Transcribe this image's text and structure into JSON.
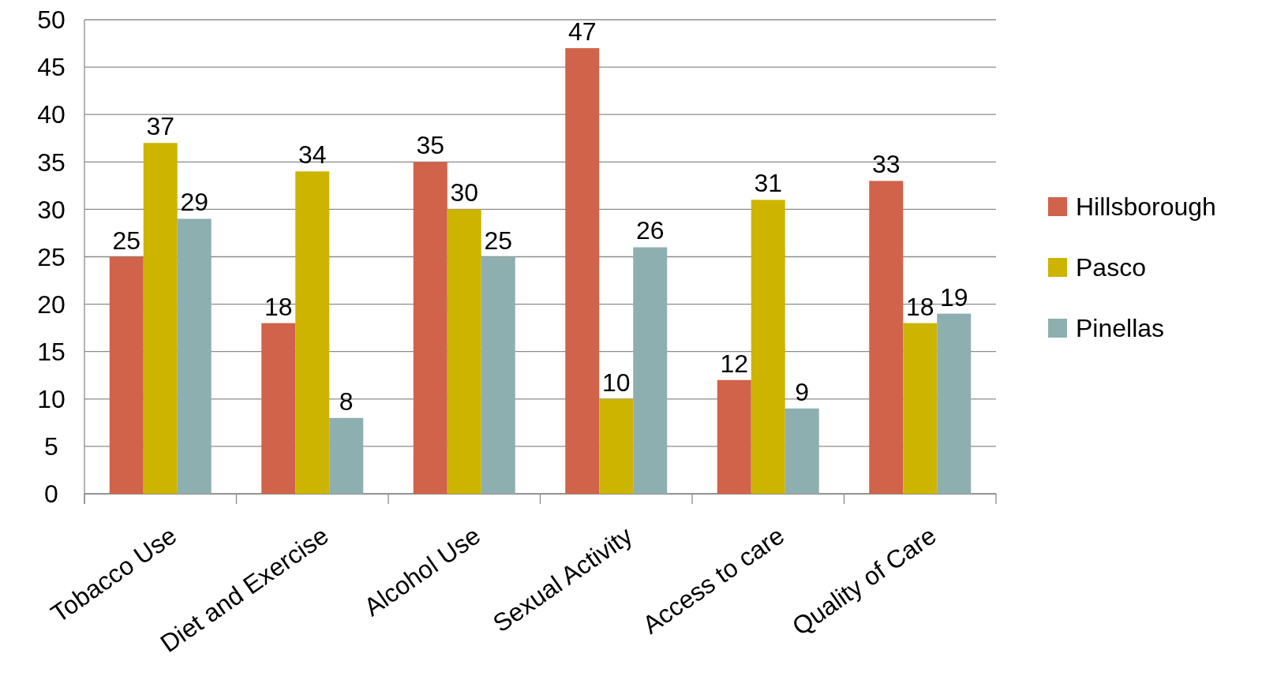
{
  "chart_data": {
    "type": "bar",
    "categories": [
      "Tobacco Use",
      "Diet and Exercise",
      "Alcohol Use",
      "Sexual Activity",
      "Access to care",
      "Quality of Care"
    ],
    "series": [
      {
        "name": "Hillsborough",
        "color": "#d0634a",
        "values": [
          25,
          18,
          35,
          47,
          12,
          33
        ]
      },
      {
        "name": "Pasco",
        "color": "#ccb400",
        "values": [
          37,
          34,
          30,
          10,
          31,
          18
        ]
      },
      {
        "name": "Pinellas",
        "color": "#8eafb0",
        "values": [
          29,
          8,
          25,
          26,
          9,
          19
        ]
      }
    ],
    "ylim": [
      0,
      50
    ],
    "yticks": [
      0,
      5,
      10,
      15,
      20,
      25,
      30,
      35,
      40,
      45,
      50
    ],
    "grid": "y",
    "legend": "right",
    "data_labels": true
  }
}
